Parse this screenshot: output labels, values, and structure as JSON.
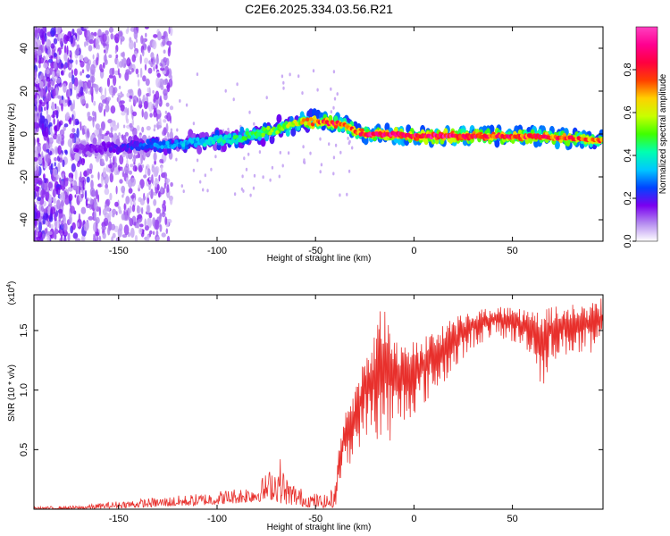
{
  "title": "C2E6.2025.334.03.56.R21",
  "chart_data": [
    {
      "type": "heatmap",
      "name": "spectrogram",
      "xlabel": "Height of straight line (km)",
      "ylabel": "Frequency (Hz)",
      "xlim": [
        -193,
        96
      ],
      "ylim": [
        -50,
        50
      ],
      "xticks": [
        -150,
        -100,
        -50,
        0,
        50
      ],
      "xtick_labels": [
        "-150",
        "-100",
        "-50",
        "0",
        "50"
      ],
      "yticks": [
        -40,
        -20,
        0,
        20,
        40
      ],
      "ytick_labels": [
        "-40",
        "-20",
        "0",
        "20",
        "40"
      ],
      "ridge": {
        "x": [
          -170,
          -150,
          -130,
          -110,
          -100,
          -90,
          -80,
          -70,
          -60,
          -50,
          -40,
          -35,
          -30,
          -25,
          -20,
          -10,
          0,
          20,
          40,
          60,
          80,
          95
        ],
        "freq": [
          -7,
          -6,
          -5,
          -4,
          -3,
          -2,
          0,
          2,
          5,
          6,
          5,
          4,
          1,
          0,
          0,
          0,
          -1,
          -1,
          -1,
          -1,
          -2,
          -3
        ],
        "amplitude": [
          0.15,
          0.2,
          0.3,
          0.35,
          0.4,
          0.45,
          0.5,
          0.55,
          0.6,
          0.75,
          0.85,
          0.7,
          0.8,
          0.85,
          0.9,
          0.9,
          0.9,
          0.9,
          0.85,
          0.85,
          0.8,
          0.75
        ]
      }
    },
    {
      "type": "colorbar",
      "label": "Normalized spectral amplitude",
      "range": [
        0,
        1
      ],
      "ticks": [
        0.0,
        0.2,
        0.4,
        0.6,
        0.8
      ],
      "tick_labels": [
        "0.0",
        "0.2",
        "0.4",
        "0.6",
        "0.8"
      ],
      "colors": [
        "#ffffff",
        "#b58cf0",
        "#7a00f0",
        "#0044ff",
        "#00c8ff",
        "#00ffb0",
        "#40ff00",
        "#c8ff00",
        "#ffd000",
        "#ff4000",
        "#ff0040",
        "#ff0090",
        "#ff40c0"
      ]
    },
    {
      "type": "line",
      "name": "snr",
      "xlabel": "Height of straight line (km)",
      "ylabel": "SNR (10 * v/v)",
      "scale_label": "(x10",
      "scale_exp": "4",
      "scale_suffix": ")",
      "xlim": [
        -193,
        96
      ],
      "ylim": [
        0,
        1.8
      ],
      "xticks": [
        -150,
        -100,
        -50,
        0,
        50
      ],
      "xtick_labels": [
        "-150",
        "-100",
        "-50",
        "0",
        "50"
      ],
      "yticks": [
        0.5,
        1.0,
        1.5
      ],
      "ytick_labels": [
        "0.5",
        "1.0",
        "1.5"
      ],
      "color": "#e8302c",
      "envelope": {
        "x": [
          -193,
          -170,
          -150,
          -130,
          -110,
          -90,
          -80,
          -72,
          -68,
          -65,
          -55,
          -45,
          -40,
          -38,
          -35,
          -30,
          -25,
          -20,
          -16,
          -10,
          0,
          10,
          20,
          30,
          40,
          50,
          60,
          65,
          70,
          80,
          90,
          96
        ],
        "lower": [
          0.0,
          0.0,
          0.01,
          0.02,
          0.03,
          0.05,
          0.06,
          0.08,
          0.05,
          0.04,
          0.02,
          0.01,
          0.01,
          0.2,
          0.3,
          0.45,
          0.6,
          0.6,
          0.5,
          0.6,
          0.8,
          0.95,
          1.15,
          1.35,
          1.45,
          1.4,
          1.3,
          1.0,
          1.25,
          1.3,
          1.25,
          1.35
        ],
        "upper": [
          0.02,
          0.03,
          0.07,
          0.1,
          0.13,
          0.18,
          0.22,
          0.36,
          0.45,
          0.28,
          0.15,
          0.12,
          0.2,
          0.55,
          0.8,
          1.0,
          1.3,
          1.45,
          1.8,
          1.45,
          1.4,
          1.5,
          1.6,
          1.68,
          1.7,
          1.7,
          1.68,
          1.68,
          1.7,
          1.72,
          1.75,
          1.78
        ]
      }
    }
  ]
}
